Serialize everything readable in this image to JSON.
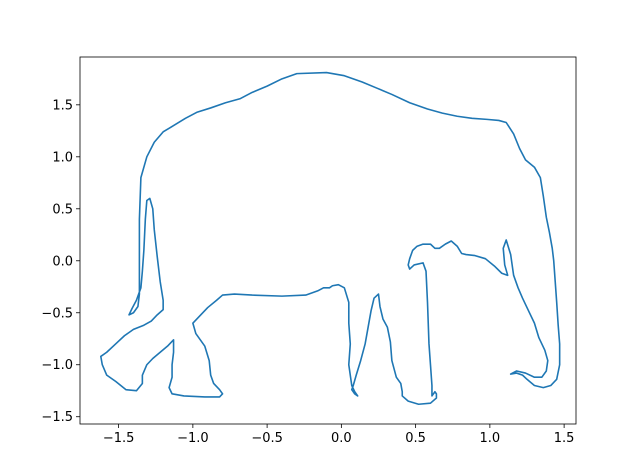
{
  "chart_data": {
    "type": "line",
    "title": "",
    "xlabel": "",
    "ylabel": "",
    "xlim": [
      -1.76,
      1.58
    ],
    "ylim": [
      -1.57,
      1.96
    ],
    "grid": false,
    "legend": "none",
    "xticks": [
      {
        "value": -1.5,
        "label": "−1.5"
      },
      {
        "value": -1.0,
        "label": "−1.0"
      },
      {
        "value": -0.5,
        "label": "−0.5"
      },
      {
        "value": 0.0,
        "label": "0.0"
      },
      {
        "value": 0.5,
        "label": "0.5"
      },
      {
        "value": 1.0,
        "label": "1.0"
      },
      {
        "value": 1.5,
        "label": "1.5"
      }
    ],
    "yticks": [
      {
        "value": -1.5,
        "label": "−1.5"
      },
      {
        "value": -1.0,
        "label": "−1.0"
      },
      {
        "value": -0.5,
        "label": "−0.5"
      },
      {
        "value": 0.0,
        "label": "0.0"
      },
      {
        "value": 0.5,
        "label": "0.5"
      },
      {
        "value": 1.0,
        "label": "1.0"
      },
      {
        "value": 1.5,
        "label": "1.5"
      }
    ],
    "series": [
      {
        "name": "elephant outline",
        "color": "#1f77b4",
        "points": [
          [
            -1.43,
            -0.52
          ],
          [
            -1.4,
            -0.5
          ],
          [
            -1.37,
            -0.44
          ],
          [
            -1.36,
            -0.32
          ],
          [
            -1.36,
            0.0
          ],
          [
            -1.36,
            0.4
          ],
          [
            -1.35,
            0.8
          ],
          [
            -1.31,
            1.0
          ],
          [
            -1.26,
            1.14
          ],
          [
            -1.2,
            1.24
          ],
          [
            -1.13,
            1.3
          ],
          [
            -1.05,
            1.37
          ],
          [
            -0.97,
            1.43
          ],
          [
            -0.88,
            1.47
          ],
          [
            -0.78,
            1.52
          ],
          [
            -0.68,
            1.56
          ],
          [
            -0.6,
            1.62
          ],
          [
            -0.5,
            1.68
          ],
          [
            -0.4,
            1.75
          ],
          [
            -0.3,
            1.8
          ],
          [
            -0.1,
            1.81
          ],
          [
            0.02,
            1.78
          ],
          [
            0.14,
            1.72
          ],
          [
            0.24,
            1.66
          ],
          [
            0.34,
            1.6
          ],
          [
            0.46,
            1.52
          ],
          [
            0.58,
            1.46
          ],
          [
            0.68,
            1.42
          ],
          [
            0.78,
            1.39
          ],
          [
            0.88,
            1.37
          ],
          [
            0.98,
            1.36
          ],
          [
            1.06,
            1.35
          ],
          [
            1.11,
            1.33
          ],
          [
            1.16,
            1.22
          ],
          [
            1.2,
            1.08
          ],
          [
            1.24,
            0.97
          ],
          [
            1.3,
            0.9
          ],
          [
            1.34,
            0.8
          ],
          [
            1.36,
            0.62
          ],
          [
            1.38,
            0.42
          ],
          [
            1.4,
            0.28
          ],
          [
            1.42,
            0.12
          ],
          [
            1.43,
            0.0
          ],
          [
            1.44,
            -0.2
          ],
          [
            1.45,
            -0.4
          ],
          [
            1.46,
            -0.62
          ],
          [
            1.47,
            -0.8
          ],
          [
            1.47,
            -1.0
          ],
          [
            1.45,
            -1.14
          ],
          [
            1.41,
            -1.2
          ],
          [
            1.36,
            -1.22
          ],
          [
            1.3,
            -1.2
          ],
          [
            1.25,
            -1.14
          ],
          [
            1.22,
            -1.1
          ],
          [
            1.18,
            -1.08
          ],
          [
            1.14,
            -1.09
          ],
          [
            1.18,
            -1.06
          ],
          [
            1.24,
            -1.08
          ],
          [
            1.3,
            -1.12
          ],
          [
            1.35,
            -1.12
          ],
          [
            1.38,
            -1.06
          ],
          [
            1.39,
            -0.96
          ],
          [
            1.37,
            -0.86
          ],
          [
            1.33,
            -0.74
          ],
          [
            1.3,
            -0.6
          ],
          [
            1.26,
            -0.48
          ],
          [
            1.22,
            -0.36
          ],
          [
            1.19,
            -0.26
          ],
          [
            1.16,
            -0.14
          ],
          [
            1.15,
            -0.04
          ],
          [
            1.14,
            0.06
          ],
          [
            1.11,
            0.2
          ],
          [
            1.09,
            0.12
          ],
          [
            1.1,
            -0.04
          ],
          [
            1.12,
            -0.14
          ],
          [
            1.08,
            -0.12
          ],
          [
            1.03,
            -0.05
          ],
          [
            0.97,
            0.02
          ],
          [
            0.9,
            0.05
          ],
          [
            0.84,
            0.06
          ],
          [
            0.81,
            0.07
          ],
          [
            0.78,
            0.14
          ],
          [
            0.74,
            0.19
          ],
          [
            0.7,
            0.16
          ],
          [
            0.66,
            0.12
          ],
          [
            0.63,
            0.12
          ],
          [
            0.6,
            0.16
          ],
          [
            0.55,
            0.16
          ],
          [
            0.51,
            0.14
          ],
          [
            0.48,
            0.1
          ],
          [
            0.46,
            0.02
          ],
          [
            0.45,
            -0.04
          ],
          [
            0.46,
            -0.08
          ],
          [
            0.49,
            -0.04
          ],
          [
            0.55,
            -0.02
          ],
          [
            0.57,
            -0.1
          ],
          [
            0.58,
            -0.4
          ],
          [
            0.59,
            -0.8
          ],
          [
            0.6,
            -1.0
          ],
          [
            0.61,
            -1.2
          ],
          [
            0.61,
            -1.3
          ],
          [
            0.63,
            -1.26
          ],
          [
            0.64,
            -1.28
          ],
          [
            0.64,
            -1.32
          ],
          [
            0.6,
            -1.37
          ],
          [
            0.52,
            -1.38
          ],
          [
            0.45,
            -1.35
          ],
          [
            0.41,
            -1.3
          ],
          [
            0.41,
            -1.26
          ],
          [
            0.4,
            -1.18
          ],
          [
            0.37,
            -1.12
          ],
          [
            0.34,
            -0.96
          ],
          [
            0.33,
            -0.78
          ],
          [
            0.31,
            -0.64
          ],
          [
            0.28,
            -0.56
          ],
          [
            0.26,
            -0.44
          ],
          [
            0.25,
            -0.32
          ],
          [
            0.22,
            -0.36
          ],
          [
            0.2,
            -0.48
          ],
          [
            0.18,
            -0.64
          ],
          [
            0.16,
            -0.8
          ],
          [
            0.13,
            -0.96
          ],
          [
            0.1,
            -1.1
          ],
          [
            0.08,
            -1.2
          ],
          [
            0.07,
            -1.24
          ],
          [
            0.09,
            -1.28
          ],
          [
            0.11,
            -1.3
          ],
          [
            0.09,
            -1.26
          ],
          [
            0.07,
            -1.2
          ],
          [
            0.05,
            -1.0
          ],
          [
            0.06,
            -0.8
          ],
          [
            0.05,
            -0.6
          ],
          [
            0.05,
            -0.4
          ],
          [
            0.02,
            -0.26
          ],
          [
            -0.02,
            -0.23
          ],
          [
            -0.06,
            -0.24
          ],
          [
            -0.08,
            -0.26
          ],
          [
            -0.12,
            -0.26
          ],
          [
            -0.16,
            -0.29
          ],
          [
            -0.24,
            -0.33
          ],
          [
            -0.4,
            -0.34
          ],
          [
            -0.6,
            -0.33
          ],
          [
            -0.72,
            -0.32
          ],
          [
            -0.8,
            -0.33
          ],
          [
            -0.84,
            -0.38
          ],
          [
            -0.9,
            -0.45
          ],
          [
            -0.96,
            -0.54
          ],
          [
            -1.0,
            -0.6
          ],
          [
            -0.98,
            -0.7
          ],
          [
            -0.92,
            -0.82
          ],
          [
            -0.89,
            -0.96
          ],
          [
            -0.88,
            -1.1
          ],
          [
            -0.86,
            -1.18
          ],
          [
            -0.82,
            -1.24
          ],
          [
            -0.8,
            -1.28
          ],
          [
            -0.82,
            -1.31
          ],
          [
            -0.92,
            -1.31
          ],
          [
            -1.06,
            -1.3
          ],
          [
            -1.14,
            -1.28
          ],
          [
            -1.16,
            -1.22
          ],
          [
            -1.14,
            -1.12
          ],
          [
            -1.14,
            -1.0
          ],
          [
            -1.13,
            -0.88
          ],
          [
            -1.13,
            -0.76
          ],
          [
            -1.17,
            -0.82
          ],
          [
            -1.22,
            -0.88
          ],
          [
            -1.27,
            -0.94
          ],
          [
            -1.31,
            -1.0
          ],
          [
            -1.34,
            -1.1
          ],
          [
            -1.34,
            -1.18
          ],
          [
            -1.38,
            -1.25
          ],
          [
            -1.45,
            -1.24
          ],
          [
            -1.52,
            -1.16
          ],
          [
            -1.58,
            -1.1
          ],
          [
            -1.61,
            -1.0
          ],
          [
            -1.62,
            -0.92
          ],
          [
            -1.58,
            -0.88
          ],
          [
            -1.52,
            -0.8
          ],
          [
            -1.46,
            -0.72
          ],
          [
            -1.4,
            -0.66
          ],
          [
            -1.33,
            -0.62
          ],
          [
            -1.28,
            -0.58
          ],
          [
            -1.24,
            -0.52
          ],
          [
            -1.2,
            -0.47
          ],
          [
            -1.2,
            -0.38
          ],
          [
            -1.22,
            -0.2
          ],
          [
            -1.24,
            0.04
          ],
          [
            -1.26,
            0.3
          ],
          [
            -1.27,
            0.5
          ],
          [
            -1.29,
            0.6
          ],
          [
            -1.31,
            0.58
          ],
          [
            -1.32,
            0.4
          ],
          [
            -1.33,
            0.1
          ],
          [
            -1.34,
            -0.1
          ],
          [
            -1.35,
            -0.26
          ],
          [
            -1.38,
            -0.38
          ],
          [
            -1.41,
            -0.46
          ],
          [
            -1.43,
            -0.52
          ]
        ]
      }
    ]
  }
}
